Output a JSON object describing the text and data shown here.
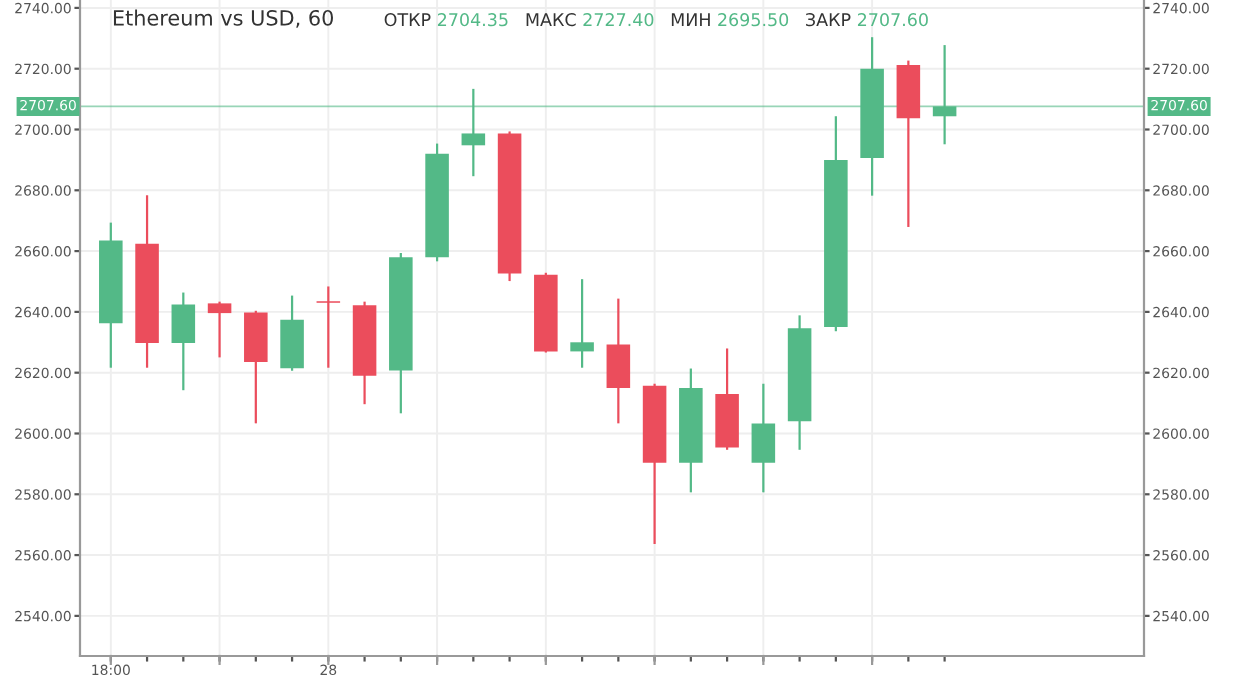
{
  "chart_data": {
    "type": "candlestick",
    "title": "Ethereum vs USD, 60",
    "annotations": [
      "ОТКР 2704.35",
      "МАКС 2727.40",
      "МИН 2695.50",
      "ЗАКР 2707.60"
    ],
    "categories": [
      "18:00",
      null,
      null,
      null,
      null,
      null,
      "28",
      null,
      null,
      null,
      null,
      null,
      null,
      null,
      null,
      null,
      null,
      null,
      null,
      null,
      null,
      null,
      null,
      null
    ],
    "ohlc": [
      [
        2636.3,
        2669,
        2622,
        2663.5
      ],
      [
        2662.4,
        2678,
        2622,
        2629.8
      ],
      [
        2629.8,
        2646,
        2614.6,
        2642.4
      ],
      [
        2642.8,
        2643,
        2625.4,
        2639.6
      ],
      [
        2639.8,
        2640,
        2603.7,
        2623.5
      ],
      [
        2621.5,
        2645,
        2621,
        2637.4
      ],
      [
        2643.5,
        2648,
        2622,
        2643
      ],
      [
        2642.2,
        2643,
        2610,
        2619
      ],
      [
        2620.7,
        2659,
        2607,
        2658
      ],
      [
        2658,
        2695,
        2657,
        2692
      ],
      [
        2694.8,
        2713,
        2685,
        2698.7
      ],
      [
        2698.7,
        2699,
        2650.5,
        2652.6
      ],
      [
        2652.2,
        2652.5,
        2627,
        2627
      ],
      [
        2627,
        2650.4,
        2622,
        2630
      ],
      [
        2629.3,
        2644,
        2603.7,
        2615
      ],
      [
        2615.7,
        2616,
        2564,
        2590.4
      ],
      [
        2590.4,
        2621,
        2581,
        2615
      ],
      [
        2613,
        2627.6,
        2595,
        2595.4
      ],
      [
        2590.4,
        2616,
        2581,
        2603.3
      ],
      [
        2604,
        2638.5,
        2595,
        2634.6
      ],
      [
        2635,
        2704,
        2634,
        2690
      ],
      [
        2690.6,
        2730,
        2678.6,
        2720
      ],
      [
        2721.2,
        2722.3,
        2668.3,
        2703.7
      ],
      [
        2704.35,
        2727.4,
        2695.5,
        2707.6
      ]
    ],
    "colors": [
      "#53b987",
      "#eb4d5c",
      "#53b987",
      "#eb4d5c",
      "#eb4d5c",
      "#53b987",
      "#eb4d5c",
      "#eb4d5c",
      "#53b987",
      "#53b987",
      "#53b987",
      "#eb4d5c",
      "#eb4d5c",
      "#53b987",
      "#eb4d5c",
      "#eb4d5c",
      "#53b987",
      "#eb4d5c",
      "#53b987",
      "#53b987",
      "#53b987",
      "#53b987",
      "#eb4d5c",
      "#53b987"
    ],
    "ylim": [
      2526.8,
      2742.6
    ],
    "yticks": [
      {
        "value": 2540,
        "label": "2540.00"
      },
      {
        "value": 2560,
        "label": "2560.00"
      },
      {
        "value": 2580,
        "label": "2580.00"
      },
      {
        "value": 2600,
        "label": "2600.00"
      },
      {
        "value": 2620,
        "label": "2620.00"
      },
      {
        "value": 2640,
        "label": "2640.00"
      },
      {
        "value": 2660,
        "label": "2660.00"
      },
      {
        "value": 2680,
        "label": "2680.00"
      },
      {
        "value": 2700,
        "label": "2700.00"
      },
      {
        "value": 2720,
        "label": "2720.00"
      },
      {
        "value": 2740,
        "label": "2740.00"
      }
    ],
    "ref_lines": [
      {
        "axis": "y",
        "value": 2707.6,
        "label": "2707.60",
        "color": "#53b987"
      }
    ],
    "grid": true
  }
}
